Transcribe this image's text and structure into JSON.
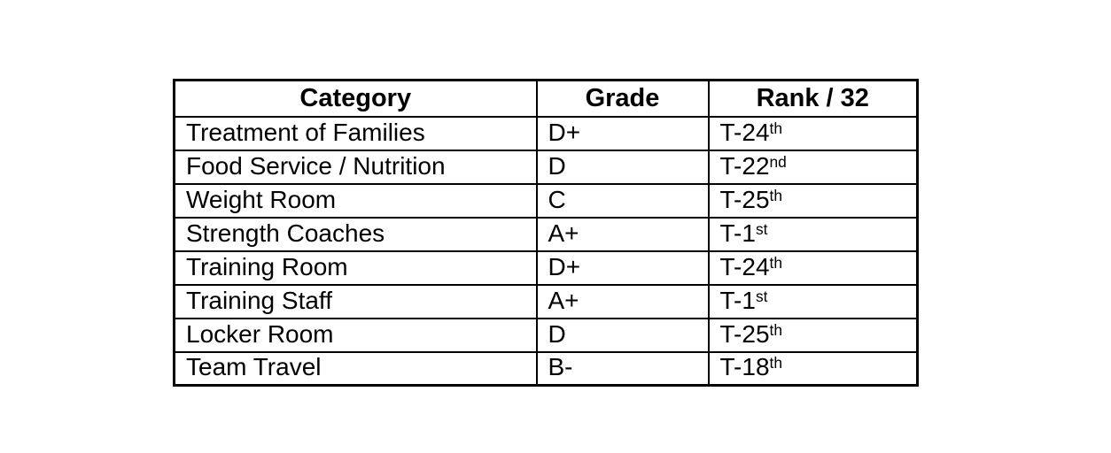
{
  "page": {
    "background_color": "#ffffff",
    "text_color": "#000000",
    "border_color": "#000000"
  },
  "table": {
    "headers": [
      {
        "label": "Category"
      },
      {
        "label": "Grade"
      },
      {
        "label": "Rank / 32"
      }
    ],
    "rows": [
      {
        "category": "Treatment of Families",
        "grade": "D+",
        "rank": {
          "base": "T-24",
          "sup": "th"
        }
      },
      {
        "category": "Food Service / Nutrition",
        "grade": "D",
        "rank": {
          "base": "T-22",
          "sup": "nd"
        }
      },
      {
        "category": "Weight Room",
        "grade": "C",
        "rank": {
          "base": "T-25",
          "sup": "th"
        }
      },
      {
        "category": "Strength Coaches",
        "grade": "A+",
        "rank": {
          "base": "T-1",
          "sup": "st"
        }
      },
      {
        "category": "Training Room",
        "grade": "D+",
        "rank": {
          "base": "T-24",
          "sup": "th"
        }
      },
      {
        "category": "Training Staff",
        "grade": "A+",
        "rank": {
          "base": "T-1",
          "sup": "st"
        }
      },
      {
        "category": "Locker Room",
        "grade": "D",
        "rank": {
          "base": "T-25",
          "sup": "th"
        }
      },
      {
        "category": "Team Travel",
        "grade": "B-",
        "rank": {
          "base": "T-18",
          "sup": "th"
        }
      }
    ]
  }
}
